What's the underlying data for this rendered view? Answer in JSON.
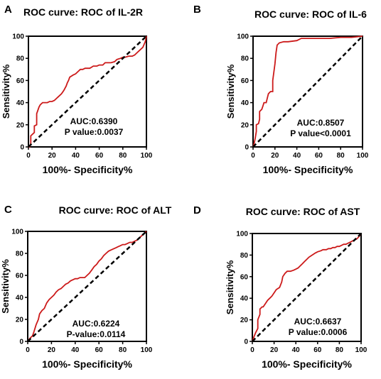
{
  "chart_data": [
    {
      "type": "line",
      "letter": "A",
      "title": "ROC curve: ROC of IL-2R",
      "xlabel": "100%- Specificity%",
      "ylabel": "Sensitivity%",
      "xlim": [
        0,
        100
      ],
      "ylim": [
        0,
        100
      ],
      "xticks": [
        "0",
        "20",
        "40",
        "60",
        "80",
        "100"
      ],
      "yticks": [
        "0",
        "20",
        "40",
        "60",
        "80",
        "100"
      ],
      "annotations": [
        "AUC:0.6390",
        "P value:0.0037"
      ],
      "series": [
        {
          "color": "#cc1a1a",
          "x": [
            0,
            1,
            2,
            2,
            5,
            5,
            7,
            7,
            9,
            10,
            12,
            14,
            16,
            18,
            20,
            22,
            24,
            25,
            28,
            30,
            32,
            33,
            34,
            35,
            38,
            40,
            42,
            44,
            46,
            48,
            50,
            52,
            55,
            58,
            60,
            63,
            65,
            68,
            70,
            73,
            75,
            78,
            80,
            82,
            85,
            88,
            90,
            92,
            95,
            97,
            99,
            100
          ],
          "y": [
            0,
            0,
            3,
            10,
            13,
            19,
            20,
            30,
            36,
            38,
            40,
            40,
            40,
            41,
            41,
            42,
            44,
            45,
            48,
            51,
            55,
            58,
            60,
            63,
            65,
            66,
            68,
            70,
            70,
            71,
            71,
            71,
            73,
            73,
            74,
            74,
            76,
            76,
            76,
            77,
            79,
            80,
            81,
            81,
            82,
            82,
            83,
            85,
            88,
            90,
            95,
            100
          ]
        },
        {
          "color": "#000000",
          "style": "dashed",
          "x": [
            0,
            100
          ],
          "y": [
            0,
            100
          ]
        }
      ]
    },
    {
      "type": "line",
      "letter": "B",
      "title": "ROC curve: ROC of IL-6",
      "xlabel": "100%- Specificity%",
      "ylabel": "Sensitivity%",
      "xlim": [
        0,
        100
      ],
      "ylim": [
        0,
        100
      ],
      "xticks": [
        "0",
        "20",
        "40",
        "60",
        "80",
        "100"
      ],
      "yticks": [
        "0",
        "20",
        "40",
        "60",
        "80",
        "100"
      ],
      "annotations": [
        "AUC:0.8507",
        "P value<0.0001"
      ],
      "series": [
        {
          "color": "#cc1a1a",
          "x": [
            0,
            1,
            2,
            3,
            3,
            5,
            6,
            6,
            8,
            9,
            10,
            12,
            13,
            14,
            16,
            18,
            18,
            20,
            21,
            22,
            24,
            28,
            32,
            40,
            44,
            50,
            60,
            70,
            80,
            90,
            100
          ],
          "y": [
            0,
            3,
            8,
            14,
            20,
            21,
            25,
            32,
            34,
            37,
            40,
            40,
            44,
            48,
            50,
            50,
            60,
            75,
            85,
            92,
            94,
            95,
            95,
            96,
            98,
            98,
            98,
            98,
            99,
            99,
            100
          ]
        },
        {
          "color": "#000000",
          "style": "dashed",
          "x": [
            0,
            100
          ],
          "y": [
            0,
            100
          ]
        }
      ]
    },
    {
      "type": "line",
      "letter": "C",
      "title": "ROC curve: ROC of ALT",
      "xlabel": "100%- Specificity%",
      "ylabel": "Sensitivity%",
      "xlim": [
        0,
        100
      ],
      "ylim": [
        0,
        100
      ],
      "xticks": [
        "0",
        "20",
        "40",
        "60",
        "80",
        "100"
      ],
      "yticks": [
        "0",
        "20",
        "40",
        "60",
        "80",
        "100"
      ],
      "annotations": [
        "AUC:0.6224",
        "P-value:0.0114"
      ],
      "series": [
        {
          "color": "#cc1a1a",
          "x": [
            0,
            2,
            4,
            5,
            7,
            9,
            10,
            12,
            14,
            16,
            18,
            20,
            22,
            24,
            26,
            28,
            30,
            32,
            34,
            36,
            38,
            40,
            42,
            44,
            46,
            48,
            50,
            52,
            54,
            56,
            58,
            60,
            62,
            64,
            66,
            68,
            70,
            72,
            74,
            76,
            78,
            80,
            82,
            84,
            86,
            88,
            90,
            92,
            94,
            96,
            98,
            100
          ],
          "y": [
            0,
            3,
            5,
            8,
            15,
            20,
            25,
            28,
            30,
            35,
            38,
            40,
            42,
            45,
            47,
            48,
            50,
            52,
            53,
            55,
            56,
            57,
            57,
            58,
            58,
            58,
            60,
            62,
            65,
            68,
            70,
            73,
            75,
            78,
            80,
            82,
            83,
            84,
            85,
            86,
            87,
            88,
            88,
            89,
            90,
            90,
            91,
            92,
            94,
            96,
            98,
            100
          ]
        },
        {
          "color": "#000000",
          "style": "dashed",
          "x": [
            0,
            100
          ],
          "y": [
            0,
            100
          ]
        }
      ]
    },
    {
      "type": "line",
      "letter": "D",
      "title": "ROC curve: ROC of AST",
      "xlabel": "100%- Specificity%",
      "ylabel": "Sensitivity%",
      "xlim": [
        0,
        100
      ],
      "ylim": [
        0,
        100
      ],
      "xticks": [
        "0",
        "20",
        "40",
        "60",
        "80",
        "100"
      ],
      "yticks": [
        "0",
        "20",
        "40",
        "60",
        "80",
        "100"
      ],
      "annotations": [
        "AUC:0.6637",
        "P value:0.0006"
      ],
      "series": [
        {
          "color": "#cc1a1a",
          "x": [
            0,
            1,
            3,
            5,
            5,
            7,
            7,
            9,
            10,
            12,
            14,
            16,
            18,
            20,
            22,
            25,
            27,
            28,
            30,
            32,
            33,
            35,
            38,
            40,
            42,
            44,
            46,
            48,
            50,
            52,
            55,
            58,
            60,
            63,
            65,
            68,
            70,
            72,
            74,
            76,
            78,
            80,
            82,
            84,
            86,
            88,
            90,
            92,
            94,
            96,
            98,
            100
          ],
          "y": [
            0,
            3,
            8,
            12,
            20,
            25,
            30,
            32,
            32,
            35,
            38,
            40,
            42,
            45,
            48,
            50,
            55,
            60,
            63,
            65,
            65,
            65,
            66,
            67,
            68,
            70,
            72,
            74,
            76,
            78,
            80,
            82,
            83,
            84,
            85,
            85,
            86,
            86,
            87,
            87,
            88,
            88,
            89,
            90,
            90,
            91,
            92,
            93,
            94,
            95,
            97,
            100
          ]
        },
        {
          "color": "#000000",
          "style": "dashed",
          "x": [
            0,
            100
          ],
          "y": [
            0,
            100
          ]
        }
      ]
    }
  ]
}
